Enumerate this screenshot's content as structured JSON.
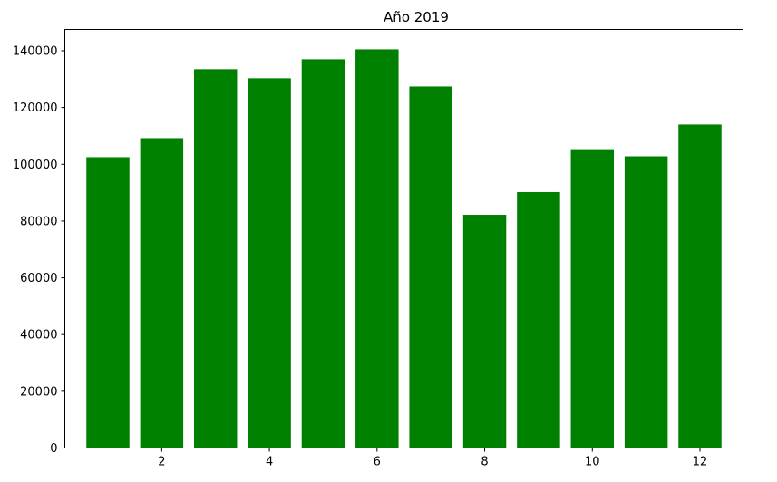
{
  "chart_data": {
    "type": "bar",
    "title": "Año 2019",
    "xlabel": "",
    "ylabel": "",
    "x": [
      1,
      2,
      3,
      4,
      5,
      6,
      7,
      8,
      9,
      10,
      11,
      12
    ],
    "values": [
      102500,
      109200,
      133500,
      130300,
      137000,
      140500,
      127400,
      82200,
      90200,
      105000,
      102800,
      114000
    ],
    "bar_color": "#008000",
    "xlim": [
      0.2,
      12.8
    ],
    "ylim": [
      0,
      147500
    ],
    "xticks": [
      2,
      4,
      6,
      8,
      10,
      12
    ],
    "yticks": [
      0,
      20000,
      40000,
      60000,
      80000,
      100000,
      120000,
      140000
    ],
    "grid": false,
    "legend": "none"
  }
}
